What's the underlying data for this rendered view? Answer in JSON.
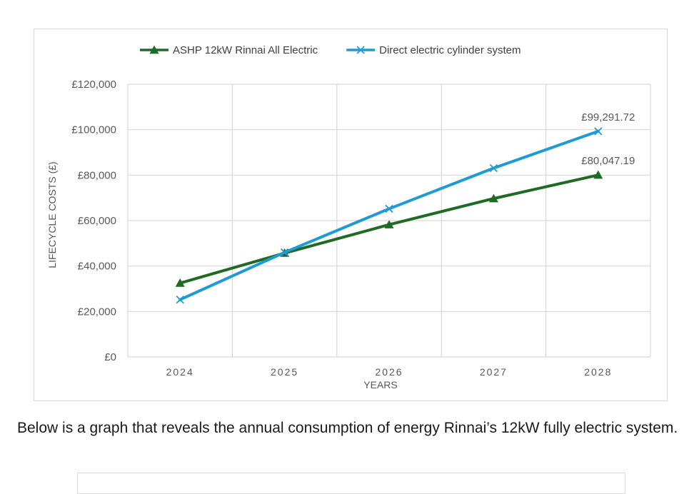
{
  "chart_data": {
    "type": "line",
    "categories": [
      "2024",
      "2025",
      "2026",
      "2027",
      "2028"
    ],
    "series": [
      {
        "name": "ASHP 12kW Rinnai All Electric",
        "color": "#1f6b25",
        "marker": "triangle",
        "values": [
          32500,
          45700,
          58200,
          69700,
          80047.19
        ]
      },
      {
        "name": "Direct electric cylinder system",
        "color": "#1f9ad6",
        "marker": "x",
        "values": [
          25200,
          46000,
          65200,
          83100,
          99291.72
        ]
      }
    ],
    "data_labels": [
      "£99,291.72",
      "£80,047.19"
    ],
    "y_ticks": [
      "£120,000",
      "£100,000",
      "£80,000",
      "£60,000",
      "£40,000",
      "£20,000",
      "£0"
    ],
    "ylim": [
      0,
      120000
    ],
    "xlabel": "YEARS",
    "ylabel": "LIFECYCLE COSTS (£)",
    "legend_position": "top"
  },
  "caption": "Below is a graph that reveals the annual consumption of energy Rinnai’s 12kW fully electric system."
}
